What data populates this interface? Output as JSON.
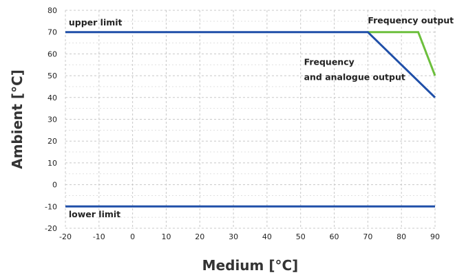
{
  "chart_data": {
    "type": "line",
    "xlabel": "Medium [°C]",
    "ylabel": "Ambient [°C]",
    "xlim": [
      -20,
      90
    ],
    "ylim": [
      -20,
      80
    ],
    "xticks": [
      -20,
      -10,
      0,
      10,
      20,
      30,
      40,
      50,
      60,
      70,
      80,
      90
    ],
    "yticks": [
      -20,
      -10,
      0,
      10,
      20,
      30,
      40,
      50,
      60,
      70,
      80
    ],
    "grid": true,
    "series": [
      {
        "name": "Frequency output",
        "color": "#6cbf3c",
        "x": [
          70,
          85,
          90
        ],
        "y": [
          70,
          70,
          50
        ]
      },
      {
        "name": "Frequency and analogue output",
        "color": "#1f4fa8",
        "x": [
          -20,
          70,
          90
        ],
        "y": [
          70,
          70,
          40
        ]
      },
      {
        "name": "lower limit",
        "color": "#1f4fa8",
        "x": [
          -20,
          90
        ],
        "y": [
          -10,
          -10
        ]
      }
    ],
    "annotations": [
      {
        "text": "upper limit",
        "x": -19,
        "y": 73
      },
      {
        "text": "lower limit",
        "x": -19,
        "y": -15
      },
      {
        "text": "Frequency output",
        "x": 70,
        "y": 74
      },
      {
        "text": "Frequency",
        "x": 51,
        "y": 55
      },
      {
        "text": "and analogue output",
        "x": 51,
        "y": 48
      }
    ]
  }
}
